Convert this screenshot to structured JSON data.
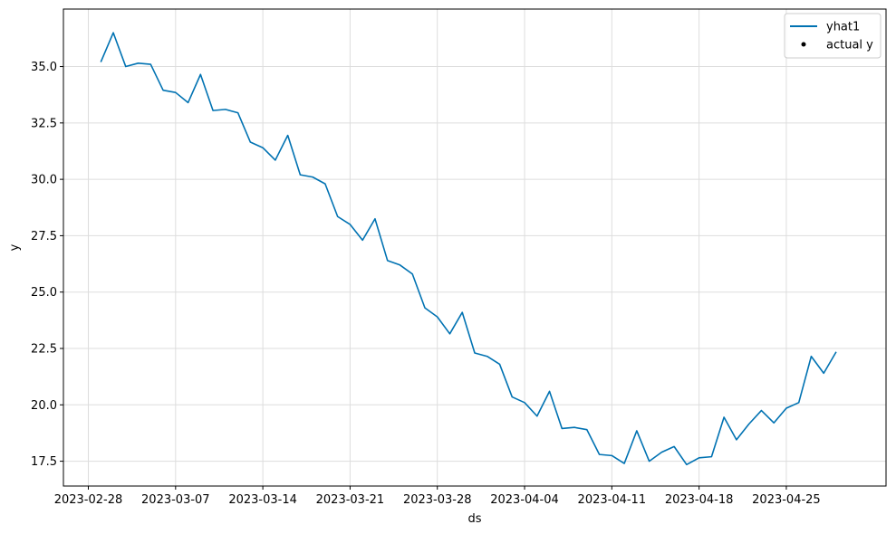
{
  "chart_data": {
    "type": "line",
    "title": "",
    "xlabel": "ds",
    "ylabel": "y",
    "grid": true,
    "legend_position": "top-right",
    "xlim": [
      "2023-02-26",
      "2023-05-03"
    ],
    "ylim": [
      16.4,
      37.55
    ],
    "x_ticks": [
      "2023-02-28",
      "2023-03-07",
      "2023-03-14",
      "2023-03-21",
      "2023-03-28",
      "2023-04-04",
      "2023-04-11",
      "2023-04-18",
      "2023-04-25"
    ],
    "y_ticks": [
      17.5,
      20.0,
      22.5,
      25.0,
      27.5,
      30.0,
      32.5,
      35.0
    ],
    "y_tick_labels": [
      "17.5",
      "20.0",
      "22.5",
      "25.0",
      "27.5",
      "30.0",
      "32.5",
      "35.0"
    ],
    "colors": {
      "yhat1": "#0072B2",
      "actual": "#000000",
      "grid": "#dddddd"
    },
    "series": [
      {
        "name": "yhat1",
        "x_start": "2023-03-01",
        "values": [
          35.2,
          36.5,
          35.0,
          35.15,
          35.1,
          33.95,
          33.85,
          33.4,
          34.65,
          33.05,
          33.1,
          32.95,
          31.65,
          31.4,
          30.85,
          31.95,
          30.2,
          30.1,
          29.8,
          28.35,
          28.0,
          27.3,
          28.25,
          26.4,
          26.2,
          25.8,
          24.3,
          23.9,
          23.15,
          24.1,
          22.3,
          22.15,
          21.8,
          20.35,
          20.1,
          19.5,
          20.6,
          18.95,
          19.0,
          18.9,
          17.8,
          17.75,
          17.4,
          18.85,
          17.5,
          17.9,
          18.15,
          17.35,
          17.65,
          17.7,
          19.45,
          18.45,
          19.15,
          19.75,
          19.2,
          19.85,
          20.1,
          22.15,
          21.4,
          22.35
        ]
      }
    ],
    "legend": [
      {
        "label": "yhat1",
        "marker": "line"
      },
      {
        "label": "actual y",
        "marker": "dot"
      }
    ]
  }
}
